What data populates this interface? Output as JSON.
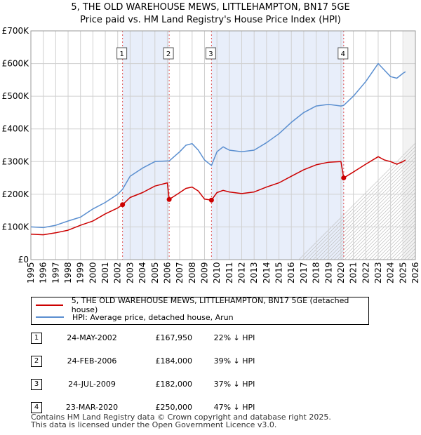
{
  "chart_data": {
    "type": "line",
    "title": "5, THE OLD WAREHOUSE MEWS, LITTLEHAMPTON, BN17 5GE",
    "subtitle": "Price paid vs. HM Land Registry's House Price Index (HPI)",
    "xlim": [
      1995,
      2026
    ],
    "ylim": [
      0,
      700000
    ],
    "x_ticks": [
      "1995",
      "1996",
      "1997",
      "1998",
      "1999",
      "2000",
      "2001",
      "2002",
      "2003",
      "2004",
      "2005",
      "2006",
      "2007",
      "2008",
      "2009",
      "2010",
      "2011",
      "2012",
      "2013",
      "2014",
      "2015",
      "2016",
      "2017",
      "2018",
      "2019",
      "2020",
      "2021",
      "2022",
      "2023",
      "2024",
      "2025",
      "2026"
    ],
    "y_ticks": [
      {
        "value": 0,
        "label": "£0"
      },
      {
        "value": 100000,
        "label": "£100K"
      },
      {
        "value": 200000,
        "label": "£200K"
      },
      {
        "value": 300000,
        "label": "£300K"
      },
      {
        "value": 400000,
        "label": "£400K"
      },
      {
        "value": 500000,
        "label": "£500K"
      },
      {
        "value": 600000,
        "label": "£600K"
      },
      {
        "value": 700000,
        "label": "£700K"
      }
    ],
    "grid": true,
    "forecast_from": 2025.1,
    "colors": {
      "property": "#cc0000",
      "hpi": "#5b8fd0",
      "band": "#e8eefa",
      "marker_line": "#e05050"
    },
    "series": [
      {
        "name": "5, THE OLD WAREHOUSE MEWS, LITTLEHAMPTON, BN17 5GE (detached house)",
        "color": "#cc0000",
        "points": [
          [
            1995.0,
            78000
          ],
          [
            1996.0,
            76000
          ],
          [
            1997.0,
            82000
          ],
          [
            1998.0,
            90000
          ],
          [
            1999.0,
            105000
          ],
          [
            2000.0,
            118000
          ],
          [
            2001.0,
            140000
          ],
          [
            2002.0,
            158000
          ],
          [
            2002.39,
            167950
          ],
          [
            2003.0,
            190000
          ],
          [
            2004.0,
            205000
          ],
          [
            2005.0,
            225000
          ],
          [
            2006.0,
            235000
          ],
          [
            2006.15,
            184000
          ],
          [
            2007.0,
            205000
          ],
          [
            2007.5,
            218000
          ],
          [
            2008.0,
            222000
          ],
          [
            2008.5,
            210000
          ],
          [
            2009.0,
            185000
          ],
          [
            2009.56,
            182000
          ],
          [
            2010.0,
            205000
          ],
          [
            2010.5,
            212000
          ],
          [
            2011.0,
            207000
          ],
          [
            2012.0,
            202000
          ],
          [
            2013.0,
            207000
          ],
          [
            2014.0,
            222000
          ],
          [
            2015.0,
            235000
          ],
          [
            2016.0,
            255000
          ],
          [
            2017.0,
            275000
          ],
          [
            2018.0,
            290000
          ],
          [
            2019.0,
            298000
          ],
          [
            2020.0,
            300000
          ],
          [
            2020.22,
            250000
          ],
          [
            2021.0,
            268000
          ],
          [
            2022.0,
            292000
          ],
          [
            2023.0,
            315000
          ],
          [
            2023.5,
            305000
          ],
          [
            2024.0,
            300000
          ],
          [
            2024.5,
            292000
          ],
          [
            2025.0,
            300000
          ],
          [
            2025.2,
            305000
          ]
        ]
      },
      {
        "name": "HPI: Average price, detached house, Arun",
        "color": "#5b8fd0",
        "points": [
          [
            1995.0,
            100000
          ],
          [
            1996.0,
            98000
          ],
          [
            1997.0,
            105000
          ],
          [
            1998.0,
            118000
          ],
          [
            1999.0,
            130000
          ],
          [
            2000.0,
            155000
          ],
          [
            2001.0,
            175000
          ],
          [
            2002.0,
            200000
          ],
          [
            2002.39,
            215000
          ],
          [
            2003.0,
            255000
          ],
          [
            2004.0,
            280000
          ],
          [
            2005.0,
            300000
          ],
          [
            2006.0,
            302000
          ],
          [
            2006.15,
            302000
          ],
          [
            2007.0,
            330000
          ],
          [
            2007.5,
            350000
          ],
          [
            2008.0,
            355000
          ],
          [
            2008.5,
            335000
          ],
          [
            2009.0,
            305000
          ],
          [
            2009.56,
            288000
          ],
          [
            2010.0,
            330000
          ],
          [
            2010.5,
            345000
          ],
          [
            2011.0,
            335000
          ],
          [
            2012.0,
            330000
          ],
          [
            2013.0,
            335000
          ],
          [
            2014.0,
            358000
          ],
          [
            2015.0,
            385000
          ],
          [
            2016.0,
            420000
          ],
          [
            2017.0,
            450000
          ],
          [
            2018.0,
            470000
          ],
          [
            2019.0,
            475000
          ],
          [
            2020.0,
            470000
          ],
          [
            2020.22,
            472000
          ],
          [
            2021.0,
            500000
          ],
          [
            2022.0,
            545000
          ],
          [
            2023.0,
            600000
          ],
          [
            2023.5,
            580000
          ],
          [
            2024.0,
            560000
          ],
          [
            2024.5,
            555000
          ],
          [
            2025.0,
            570000
          ],
          [
            2025.2,
            575000
          ]
        ]
      }
    ],
    "transactions": [
      {
        "num": "1",
        "x": 2002.39,
        "price_value": 167950
      },
      {
        "num": "2",
        "x": 2006.15,
        "price_value": 184000
      },
      {
        "num": "3",
        "x": 2009.56,
        "price_value": 182000
      },
      {
        "num": "4",
        "x": 2020.22,
        "price_value": 250000
      }
    ],
    "bands": [
      [
        2002.39,
        2006.15
      ],
      [
        2009.56,
        2020.22
      ]
    ]
  },
  "legend": {
    "property": "5, THE OLD WAREHOUSE MEWS, LITTLEHAMPTON, BN17 5GE (detached house)",
    "hpi": "HPI: Average price, detached house, Arun"
  },
  "table": [
    {
      "num": "1",
      "date": "24-MAY-2002",
      "price": "£167,950",
      "hpi": "22% ↓ HPI"
    },
    {
      "num": "2",
      "date": "24-FEB-2006",
      "price": "£184,000",
      "hpi": "39% ↓ HPI"
    },
    {
      "num": "3",
      "date": "24-JUL-2009",
      "price": "£182,000",
      "hpi": "37% ↓ HPI"
    },
    {
      "num": "4",
      "date": "23-MAR-2020",
      "price": "£250,000",
      "hpi": "47% ↓ HPI"
    }
  ],
  "footer": {
    "line1": "Contains HM Land Registry data © Crown copyright and database right 2025.",
    "line2": "This data is licensed under the Open Government Licence v3.0."
  }
}
